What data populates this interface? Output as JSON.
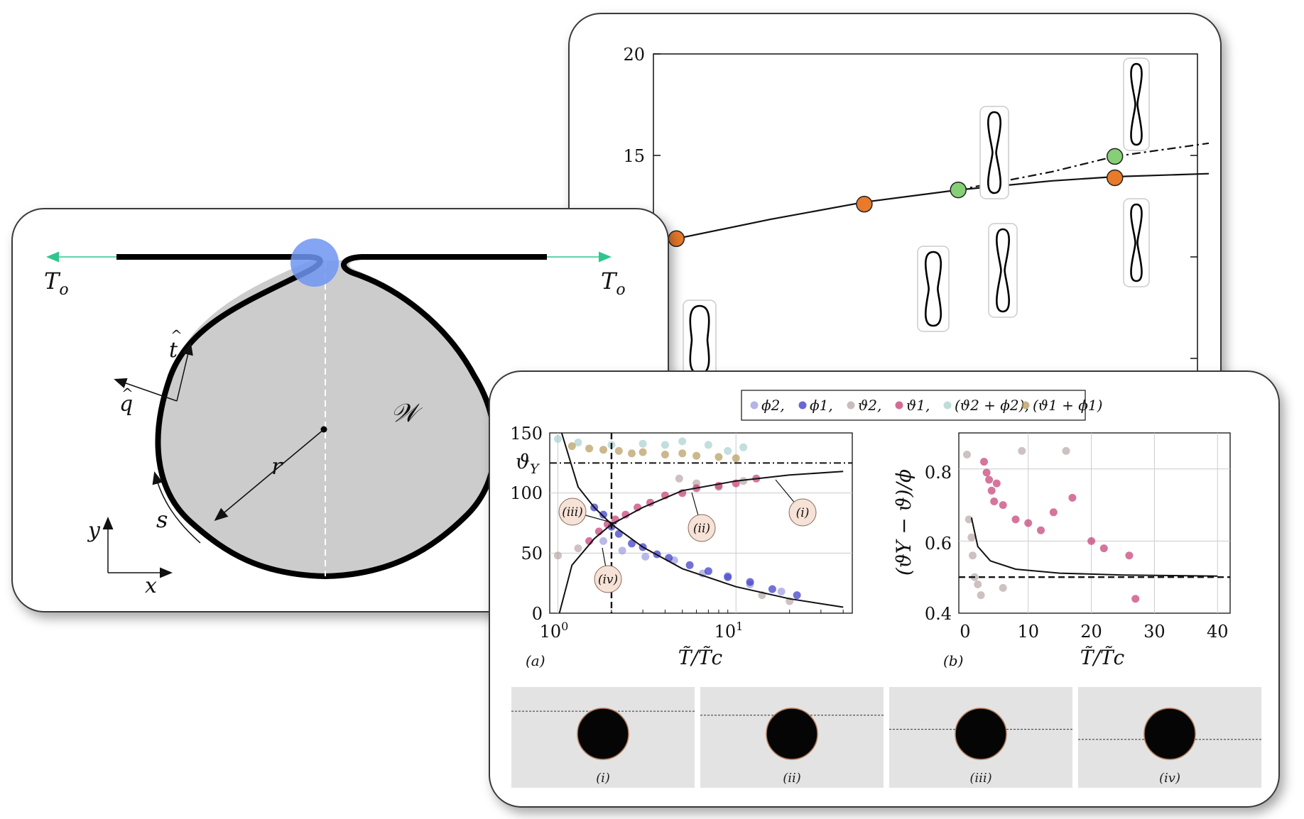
{
  "bifurcation_figure": {
    "y_ticks": [
      "20",
      "15"
    ],
    "chart_data": {
      "type": "line",
      "ylim": [
        0,
        20
      ],
      "series": [
        {
          "curve": "solid",
          "points": [
            [
              0.0,
              9.9
            ],
            [
              0.15,
              10.9
            ],
            [
              0.3,
              11.85
            ],
            [
              0.45,
              12.7
            ],
            [
              0.6,
              13.3
            ],
            [
              0.75,
              13.75
            ],
            [
              0.85,
              13.95
            ],
            [
              1.0,
              14.1
            ]
          ]
        },
        {
          "curve": "dash-dot",
          "points": [
            [
              0.6,
              13.3
            ],
            [
              0.75,
              14.2
            ],
            [
              0.85,
              14.95
            ],
            [
              1.0,
              15.6
            ]
          ]
        }
      ],
      "markers": [
        {
          "x": 0.0,
          "y": 9.9,
          "color": "orange"
        },
        {
          "x": 0.15,
          "y": 10.9,
          "color": "orange"
        },
        {
          "x": 0.45,
          "y": 12.6,
          "color": "orange"
        },
        {
          "x": 0.6,
          "y": 13.3,
          "color": "green"
        },
        {
          "x": 0.85,
          "y": 13.9,
          "color": "orange"
        },
        {
          "x": 0.85,
          "y": 14.95,
          "color": "green"
        }
      ]
    },
    "colors": {
      "orange": "#e87a2a",
      "green": "#86cf77"
    }
  },
  "loop_diagram": {
    "tension_left": "T",
    "tension_left_sub": "o",
    "tension_right": "T",
    "tension_right_sub": "o",
    "tangent": "t",
    "normal": "q",
    "region": "𝒲",
    "radius": "r",
    "arclength": "s",
    "axis_y": "y",
    "axis_x": "x",
    "colors": {
      "fill": "#cccccc",
      "arrow": "#2ec68e",
      "contact": "#6f95f2"
    }
  },
  "legend": {
    "entries": [
      "ϕ2",
      "ϕ1",
      "ϑ2",
      "ϑ1",
      "(ϑ2 + ϕ2)",
      "(ϑ1 + ϕ1)"
    ],
    "colors": [
      "#9b9be0",
      "#3434c8",
      "#b8a6a6",
      "#c43a72",
      "#a8d0ce",
      "#b59a5c"
    ]
  },
  "panel_a": {
    "tag": "(a)",
    "xlabel": "T̃/T̃c",
    "y_ticks": [
      "150",
      "100",
      "50",
      "0"
    ],
    "theta_y_label": "ϑY",
    "callouts": [
      "(i)",
      "(ii)",
      "(iii)",
      "(iv)"
    ],
    "chart_data": {
      "type": "scatter",
      "x_scale": "log",
      "xlim": [
        0.9,
        45
      ],
      "ylim": [
        0,
        150
      ],
      "x_tick_labels": [
        "10^0",
        "10^1"
      ],
      "reference_lines": {
        "theta_Y": 125,
        "x_dashed": 2
      },
      "fits": [
        {
          "name": "rising",
          "points": [
            [
              1.02,
              0
            ],
            [
              1.2,
              40
            ],
            [
              1.6,
              62
            ],
            [
              2,
              74
            ],
            [
              3,
              88
            ],
            [
              5,
              102
            ],
            [
              10,
              110
            ],
            [
              20,
              115
            ],
            [
              40,
              118
            ]
          ]
        },
        {
          "name": "falling",
          "points": [
            [
              1.05,
              150
            ],
            [
              1.3,
              105
            ],
            [
              1.6,
              88
            ],
            [
              2,
              74
            ],
            [
              3,
              55
            ],
            [
              5,
              37
            ],
            [
              10,
              22
            ],
            [
              20,
              12
            ],
            [
              40,
              5
            ]
          ]
        }
      ],
      "series": [
        {
          "name": "ϕ2",
          "points": [
            [
              1.8,
              60
            ],
            [
              2.3,
              52
            ],
            [
              3.1,
              47
            ],
            [
              4.5,
              44
            ],
            [
              6.5,
              33
            ],
            [
              9,
              31
            ],
            [
              12,
              24
            ],
            [
              18,
              18
            ]
          ]
        },
        {
          "name": "ϕ1",
          "points": [
            [
              1.6,
              88
            ],
            [
              1.8,
              82
            ],
            [
              2.0,
              72
            ],
            [
              2.2,
              66
            ],
            [
              2.6,
              58
            ],
            [
              3.0,
              55
            ],
            [
              3.6,
              49
            ],
            [
              4.2,
              46
            ],
            [
              5.5,
              40
            ],
            [
              7,
              35
            ],
            [
              9,
              30
            ],
            [
              12,
              26
            ],
            [
              16,
              20
            ],
            [
              22,
              15
            ]
          ]
        },
        {
          "name": "ϑ2",
          "points": [
            [
              1.0,
              48
            ],
            [
              1.3,
              54
            ],
            [
              4.8,
              112
            ],
            [
              6,
              108
            ],
            [
              8,
              105
            ],
            [
              11,
              110
            ],
            [
              14,
              15
            ],
            [
              20,
              10
            ]
          ]
        },
        {
          "name": "ϑ1",
          "points": [
            [
              1.5,
              60
            ],
            [
              1.7,
              68
            ],
            [
              1.9,
              74
            ],
            [
              2.1,
              78
            ],
            [
              2.4,
              82
            ],
            [
              2.8,
              88
            ],
            [
              3.3,
              92
            ],
            [
              4,
              98
            ],
            [
              5,
              100
            ],
            [
              6,
              104
            ],
            [
              8,
              106
            ],
            [
              10,
              108
            ],
            [
              13,
              112
            ]
          ]
        },
        {
          "name": "(ϑ2 + ϕ2)",
          "points": [
            [
              1.0,
              145
            ],
            [
              1.3,
              142
            ],
            [
              2,
              140
            ],
            [
              3,
              141
            ],
            [
              4,
              140
            ],
            [
              5,
              143
            ],
            [
              7,
              140
            ],
            [
              9,
              135
            ],
            [
              11,
              138
            ]
          ]
        },
        {
          "name": "(ϑ1 + ϕ1)",
          "points": [
            [
              1.2,
              139
            ],
            [
              1.5,
              137
            ],
            [
              1.8,
              136
            ],
            [
              2.2,
              135
            ],
            [
              2.6,
              133
            ],
            [
              3,
              134
            ],
            [
              4,
              132
            ],
            [
              5,
              133
            ],
            [
              6,
              131
            ],
            [
              8,
              130
            ],
            [
              10,
              129
            ]
          ]
        }
      ]
    }
  },
  "panel_b": {
    "tag": "(b)",
    "xlabel": "T̃/T̃c",
    "ylabel": "(ϑY − ϑ)/ϕ",
    "y_ticks": [
      "0.8",
      "0.6",
      "0.4"
    ],
    "x_ticks": [
      "0",
      "10",
      "20",
      "30",
      "40"
    ],
    "chart_data": {
      "type": "scatter",
      "xlim": [
        -1,
        42
      ],
      "ylim": [
        0.4,
        0.9
      ],
      "reference_lines": {
        "y_dashed": 0.5
      },
      "fit": [
        [
          1,
          0.665
        ],
        [
          2,
          0.585
        ],
        [
          4,
          0.545
        ],
        [
          8,
          0.522
        ],
        [
          15,
          0.511
        ],
        [
          25,
          0.506
        ],
        [
          40,
          0.503
        ]
      ],
      "series": [
        {
          "name": "ϑ1",
          "points": [
            [
              3,
              0.82
            ],
            [
              3.4,
              0.79
            ],
            [
              3.8,
              0.77
            ],
            [
              4.2,
              0.74
            ],
            [
              4.6,
              0.71
            ],
            [
              5,
              0.76
            ],
            [
              6,
              0.7
            ],
            [
              8,
              0.66
            ],
            [
              10,
              0.65
            ],
            [
              12,
              0.63
            ],
            [
              14,
              0.68
            ],
            [
              17,
              0.72
            ],
            [
              20,
              0.6
            ],
            [
              22,
              0.58
            ],
            [
              26,
              0.56
            ],
            [
              27,
              0.44
            ]
          ]
        },
        {
          "name": "ϑ2",
          "points": [
            [
              0.3,
              0.84
            ],
            [
              0.6,
              0.66
            ],
            [
              1,
              0.61
            ],
            [
              1.2,
              0.56
            ],
            [
              1.5,
              0.5
            ],
            [
              2,
              0.48
            ],
            [
              2.5,
              0.45
            ],
            [
              6,
              0.47
            ],
            [
              9,
              0.85
            ],
            [
              16,
              0.85
            ]
          ]
        }
      ]
    }
  },
  "photos": {
    "captions": [
      "(i)",
      "(ii)",
      "(iii)",
      "(iv)"
    ],
    "waterline": [
      0.24,
      0.28,
      0.42,
      0.52
    ]
  }
}
